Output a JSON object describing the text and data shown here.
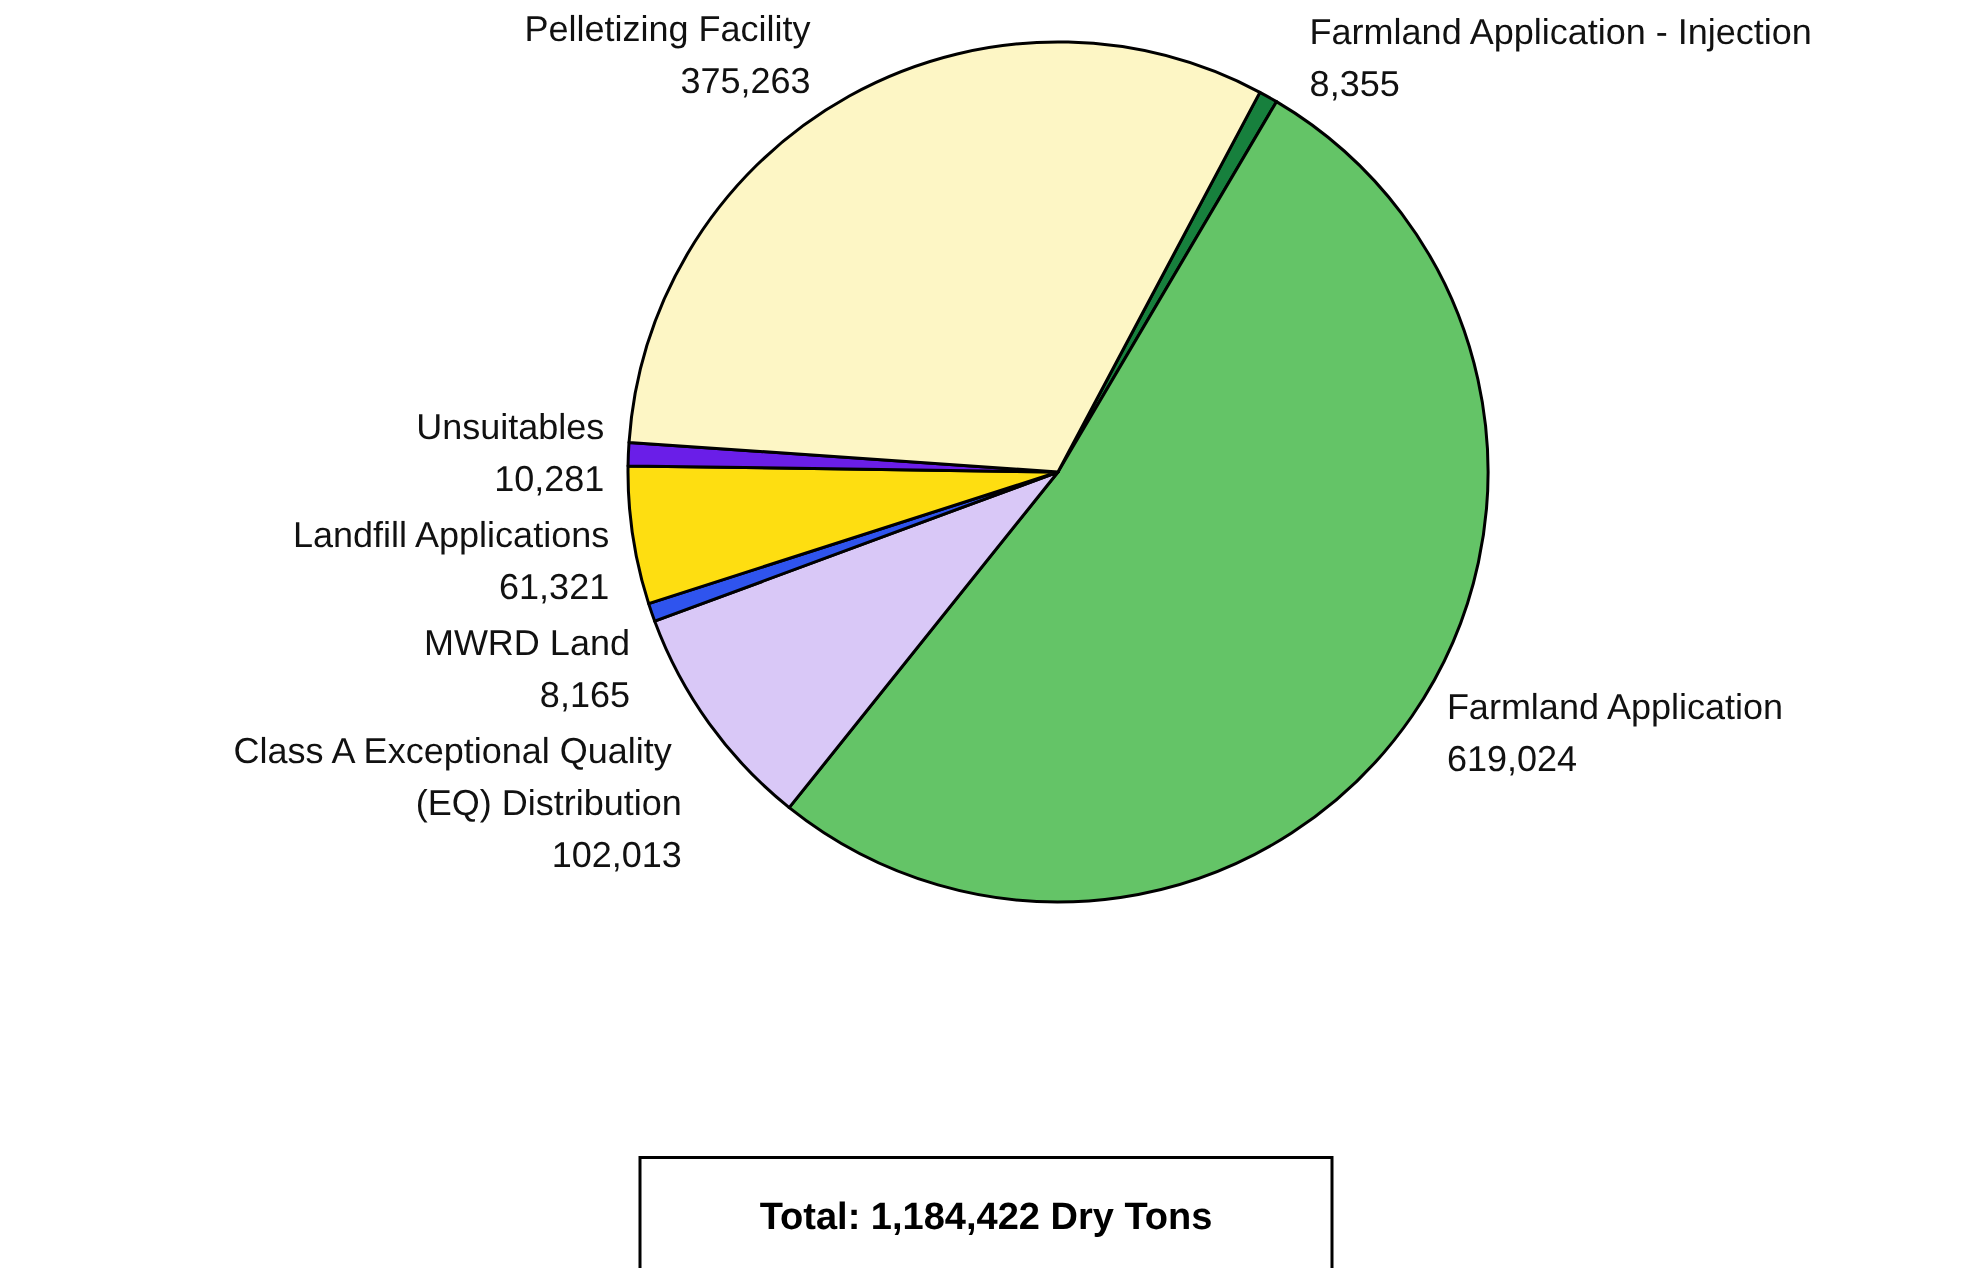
{
  "chart_data": {
    "type": "pie",
    "categories": [
      "Farmland Application - Injection",
      "Farmland Application",
      "Class A Exceptional Quality (EQ) Distribution",
      "MWRD Land",
      "Landfill Applications",
      "Unsuitables",
      "Pelletizing Facility"
    ],
    "values": [
      8355,
      619024,
      102013,
      8165,
      61321,
      10281,
      375263
    ],
    "colors": [
      "#17803d",
      "#64c467",
      "#d9c8f7",
      "#2f54ee",
      "#fede11",
      "#6a1ee8",
      "#fdf6c5"
    ],
    "value_labels": [
      "8,355",
      "619,024",
      "102,013",
      "8,165",
      "61,321",
      "10,281",
      "375,263"
    ],
    "annotations": [
      "Total: 1,184,422 Dry Tons"
    ]
  }
}
